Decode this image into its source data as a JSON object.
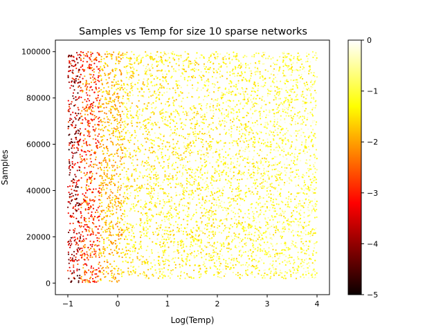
{
  "chart_data": {
    "type": "scatter",
    "title": "Samples vs Temp for size 10 sparse networks",
    "xlabel": "Log(Temp)",
    "ylabel": "Samples",
    "xlim": [
      -1.25,
      4.25
    ],
    "ylim": [
      -5000,
      105000
    ],
    "xticks": [
      -1,
      0,
      1,
      2,
      3,
      4
    ],
    "xtick_labels": [
      "−1",
      "0",
      "1",
      "2",
      "3",
      "4"
    ],
    "yticks": [
      0,
      20000,
      40000,
      60000,
      80000,
      100000
    ],
    "ytick_labels": [
      "0",
      "20000",
      "40000",
      "60000",
      "80000",
      "100000"
    ],
    "grid": false,
    "colorbar": {
      "colormap": "hot",
      "range": [
        -5,
        0
      ],
      "ticks": [
        0,
        -1,
        -2,
        -3,
        -4,
        -5
      ],
      "tick_labels": [
        "0",
        "−1",
        "−2",
        "−3",
        "−4",
        "−5"
      ]
    },
    "sample_regions": [
      {
        "x": [
          -1.0,
          -0.75
        ],
        "samples": [
          0,
          100000
        ],
        "value_range": [
          -4.8,
          -2.5
        ]
      },
      {
        "x": [
          -0.75,
          -0.35
        ],
        "samples": [
          0,
          100000
        ],
        "value_range": [
          -3.5,
          -1.7
        ]
      },
      {
        "x": [
          -0.35,
          0.1
        ],
        "samples": [
          0,
          100000
        ],
        "value_range": [
          -2.3,
          -1.2
        ]
      },
      {
        "x": [
          0.1,
          4.0
        ],
        "samples": [
          2000,
          100000
        ],
        "value_range": [
          -1.9,
          -0.5
        ]
      }
    ],
    "point_count": 6000
  }
}
